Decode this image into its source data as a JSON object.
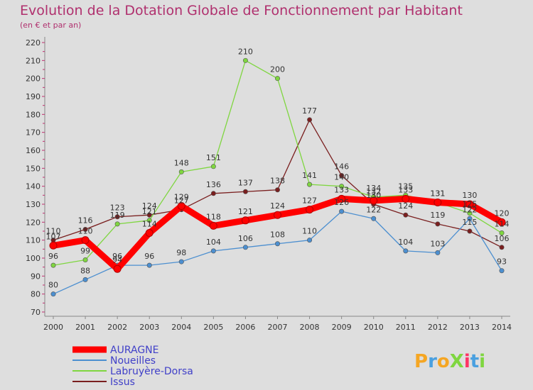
{
  "chart_data": {
    "type": "line",
    "title": "Evolution de la Dotation Globale de Fonctionnement par Habitant",
    "subtitle": "(en € et par an)",
    "x": [
      "2000",
      "2001",
      "2002",
      "2003",
      "2004",
      "2005",
      "2006",
      "2007",
      "2008",
      "2009",
      "2010",
      "2011",
      "2012",
      "2013",
      "2014"
    ],
    "ylim": [
      70,
      220
    ],
    "yticks": [
      70,
      80,
      90,
      100,
      110,
      120,
      130,
      140,
      150,
      160,
      170,
      180,
      190,
      200,
      210,
      220
    ],
    "grid": false,
    "legend_position": "bottom-left",
    "series": [
      {
        "name": "AURAGNE",
        "color": "#ff0000",
        "values": [
          107,
          110,
          94,
          114,
          129,
          118,
          121,
          124,
          127,
          133,
          132,
          133,
          131,
          130,
          120
        ]
      },
      {
        "name": "Noueilles",
        "color": "#4c8fd0",
        "values": [
          80,
          88,
          96,
          96,
          98,
          104,
          106,
          108,
          110,
          126,
          122,
          104,
          103,
          122,
          93
        ]
      },
      {
        "name": "Labruyère-Dorsa",
        "color": "#7fd640",
        "values": [
          96,
          99,
          119,
          121,
          148,
          151,
          210,
          200,
          141,
          140,
          134,
          135,
          131,
          125,
          114
        ]
      },
      {
        "name": "Issus",
        "color": "#7a1f1f",
        "values": [
          110,
          116,
          123,
          124,
          127,
          136,
          137,
          138,
          177,
          146,
          130,
          124,
          119,
          115,
          106
        ]
      }
    ]
  },
  "logo": {
    "text": "ProXiti",
    "colors": [
      "#f5a623",
      "#4aa0e0",
      "#f5a623",
      "#7fd640",
      "#ff3366",
      "#4aa0e0",
      "#7fd640"
    ]
  }
}
